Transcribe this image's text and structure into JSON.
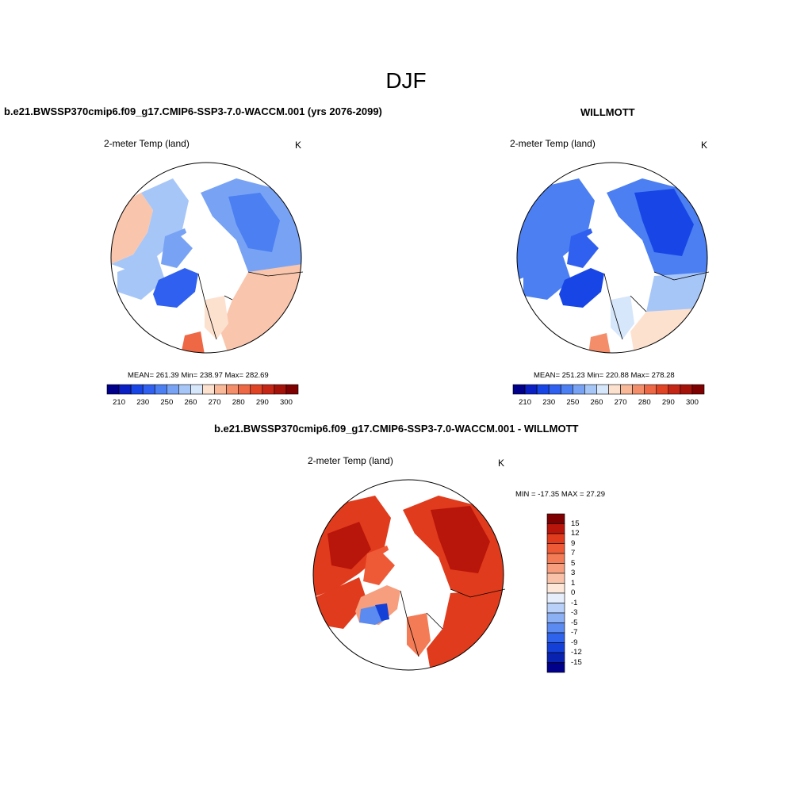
{
  "figure_title": "DJF",
  "colors": {
    "cold_strong": "#1133dd",
    "cold": "#4477ee",
    "cool": "#8fb4f5",
    "neutral": "#ffffff",
    "warm": "#f9c6ad",
    "hot": "#e8502c",
    "hottest": "#b41208",
    "outline": "#000000"
  },
  "panels": [
    {
      "title": "b.e21.BWSSP370cmip6.f09_g17.CMIP6-SSP3-7.0-WACCM.001 (yrs 2076-2099)",
      "variable_label": "2-meter Temp (land)",
      "units": "K",
      "stats_text": "MEAN= 261.39  Min= 238.97  Max= 282.69"
    },
    {
      "title": "WILLMOTT",
      "variable_label": "2-meter Temp (land)",
      "units": "K",
      "stats_text": "MEAN= 251.23  Min= 220.88  Max= 278.28"
    },
    {
      "title": "b.e21.BWSSP370cmip6.f09_g17.CMIP6-SSP3-7.0-WACCM.001 - WILLMOTT",
      "variable_label": "2-meter Temp (land)",
      "units": "K",
      "stats_text": "MIN = -17.35 MAX =  27.29"
    }
  ],
  "abs_colorbar": {
    "tick_labels": [
      "210",
      "230",
      "250",
      "260",
      "270",
      "280",
      "290",
      "300"
    ],
    "colors": [
      "#00008b",
      "#0a1fc4",
      "#1846e6",
      "#2f60f0",
      "#4b7ff2",
      "#78a3f5",
      "#a7c6f8",
      "#d6e6fb",
      "#fde1cf",
      "#f9b897",
      "#f48e6a",
      "#ee6845",
      "#e14325",
      "#c52616",
      "#a5120a",
      "#7e0000"
    ]
  },
  "diff_colorbar": {
    "labels": [
      "15",
      "12",
      "9",
      "7",
      "5",
      "3",
      "1",
      "0",
      "-1",
      "-3",
      "-5",
      "-7",
      "-9",
      "-12",
      "-15"
    ],
    "colors": [
      "#7e0000",
      "#b8150b",
      "#e03b1c",
      "#ef5a36",
      "#f37b55",
      "#f69e7d",
      "#f9c2a8",
      "#fde7d9",
      "#e6eefc",
      "#b9d0f8",
      "#8bb0f4",
      "#5b8af0",
      "#2f63ec",
      "#1440d8",
      "#0a22b0",
      "#00008b"
    ]
  }
}
